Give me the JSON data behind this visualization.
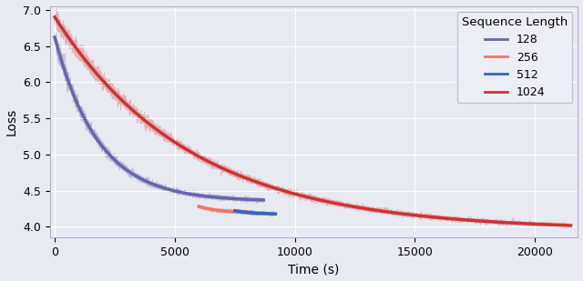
{
  "xlabel": "Time (s)",
  "ylabel": "Loss",
  "legend_title": "Sequence Length",
  "xlim": [
    -200,
    21800
  ],
  "ylim": [
    3.85,
    7.05
  ],
  "yticks": [
    4.0,
    4.5,
    5.0,
    5.5,
    6.0,
    6.5,
    7.0
  ],
  "xticks": [
    0,
    5000,
    10000,
    15000,
    20000
  ],
  "background_color": "#e8eaf2",
  "grid_color": "#ffffff",
  "series": [
    {
      "label": "128",
      "color_raw": "#8080bb",
      "color_smooth": "#6666aa",
      "t_end": 8700,
      "loss_start": 6.62,
      "loss_end": 4.35,
      "k": 4.8,
      "noise_base": 0.015,
      "noise_decay_factor": 0.06,
      "alpha_raw": 0.45,
      "lw_raw": 0.5,
      "lw_smooth": 2.5
    },
    {
      "label": "256",
      "color_raw": "#ff8877",
      "color_smooth": "#ee7766",
      "t_start": 6000,
      "t_end": 8200,
      "loss_start": 4.28,
      "loss_end": 4.19,
      "k": 2.5,
      "noise_base": 0.012,
      "noise_decay_factor": 0.0,
      "alpha_raw": 0.55,
      "lw_raw": 0.7,
      "lw_smooth": 2.5
    },
    {
      "label": "512",
      "color_raw": "#4477cc",
      "color_smooth": "#3366bb",
      "t_start": 7500,
      "t_end": 9200,
      "loss_start": 4.22,
      "loss_end": 4.17,
      "k": 2.0,
      "noise_base": 0.012,
      "noise_decay_factor": 0.0,
      "alpha_raw": 0.5,
      "lw_raw": 0.7,
      "lw_smooth": 2.5
    },
    {
      "label": "1024",
      "color_raw": "#dd4444",
      "color_smooth": "#cc3333",
      "t_end": 21500,
      "loss_start": 6.9,
      "loss_end": 3.95,
      "k": 3.8,
      "noise_base": 0.014,
      "noise_decay_factor": 0.045,
      "alpha_raw": 0.35,
      "lw_raw": 0.5,
      "lw_smooth": 2.5
    }
  ]
}
